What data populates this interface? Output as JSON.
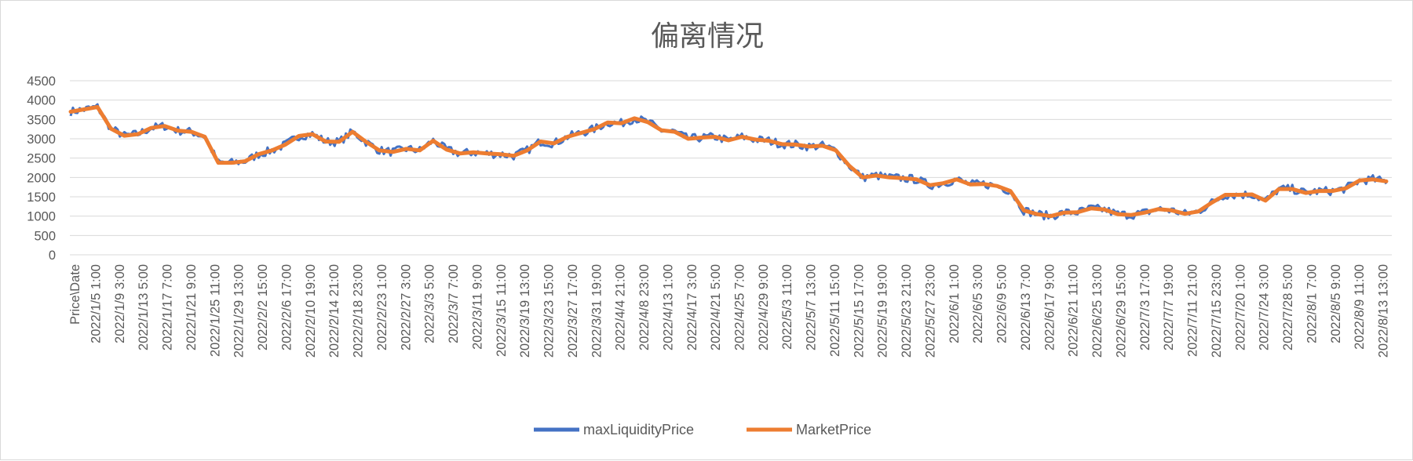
{
  "chart_data": {
    "type": "line",
    "title": "偏离情况",
    "y_ticks": [
      "0",
      "500",
      "1000",
      "1500",
      "2000",
      "2500",
      "3000",
      "3500",
      "4000",
      "4500"
    ],
    "ylim": [
      0,
      4500
    ],
    "y_step": 500,
    "grid": true,
    "legend_position": "bottom",
    "x_corner_label": "Price\\Date",
    "x_tick_labels": [
      "2022/1/5 1:00",
      "2022/1/9 3:00",
      "2022/1/13 5:00",
      "2022/1/17 7:00",
      "2022/1/21 9:00",
      "2022/1/25 11:00",
      "2022/1/29 13:00",
      "2022/2/2 15:00",
      "2022/2/6 17:00",
      "2022/2/10 19:00",
      "2022/2/14 21:00",
      "2022/2/18 23:00",
      "2022/2/23 1:00",
      "2022/2/27 3:00",
      "2022/3/3 5:00",
      "2022/3/7 7:00",
      "2022/3/11 9:00",
      "2022/3/15 11:00",
      "2022/3/19 13:00",
      "2022/3/23 15:00",
      "2022/3/27 17:00",
      "2022/3/31 19:00",
      "2022/4/4 21:00",
      "2022/4/8 23:00",
      "2022/4/13 1:00",
      "2022/4/17 3:00",
      "2022/4/21 5:00",
      "2022/4/25 7:00",
      "2022/4/29 9:00",
      "2022/5/3 11:00",
      "2022/5/7 13:00",
      "2022/5/11 15:00",
      "2022/5/15 17:00",
      "2022/5/19 19:00",
      "2022/5/23 21:00",
      "2022/5/27 23:00",
      "2022/6/1 1:00",
      "2022/6/5 3:00",
      "2022/6/9 5:00",
      "2022/6/13 7:00",
      "2022/6/17 9:00",
      "2022/6/21 11:00",
      "2022/6/25 13:00",
      "2022/6/29 15:00",
      "2022/7/3 17:00",
      "2022/7/7 19:00",
      "2022/7/11 21:00",
      "2022/7/15 23:00",
      "2022/7/20 1:00",
      "2022/7/24 3:00",
      "2022/7/28 5:00",
      "2022/8/1 7:00",
      "2022/8/5 9:00",
      "2022/8/9 11:00",
      "2022/8/13 13:00"
    ],
    "series": [
      {
        "name": "maxLiquidityPrice",
        "color": "#4472c4"
      },
      {
        "name": "MarketPrice",
        "color": "#ed7d31"
      }
    ],
    "market_price": [
      3700,
      3760,
      3820,
      3260,
      3080,
      3120,
      3280,
      3330,
      3210,
      3180,
      3050,
      2380,
      2380,
      2420,
      2600,
      2700,
      2850,
      3070,
      3120,
      2930,
      2920,
      3180,
      2920,
      2700,
      2660,
      2740,
      2700,
      2950,
      2720,
      2620,
      2650,
      2620,
      2600,
      2560,
      2700,
      2930,
      2880,
      3050,
      3150,
      3250,
      3420,
      3400,
      3530,
      3430,
      3220,
      3180,
      3000,
      3030,
      3050,
      2960,
      3050,
      2980,
      2950,
      2860,
      2850,
      2800,
      2820,
      2700,
      2300,
      2000,
      2050,
      2000,
      1980,
      1950,
      1800,
      1850,
      1950,
      1820,
      1830,
      1780,
      1650,
      1150,
      1050,
      1000,
      1090,
      1100,
      1200,
      1170,
      1050,
      1030,
      1090,
      1180,
      1150,
      1060,
      1120,
      1350,
      1550,
      1550,
      1560,
      1400,
      1700,
      1700,
      1600,
      1650,
      1650,
      1720,
      1920,
      1950,
      1900
    ]
  },
  "legend": {
    "items": [
      {
        "label": "maxLiquidityPrice"
      },
      {
        "label": "MarketPrice"
      }
    ]
  }
}
